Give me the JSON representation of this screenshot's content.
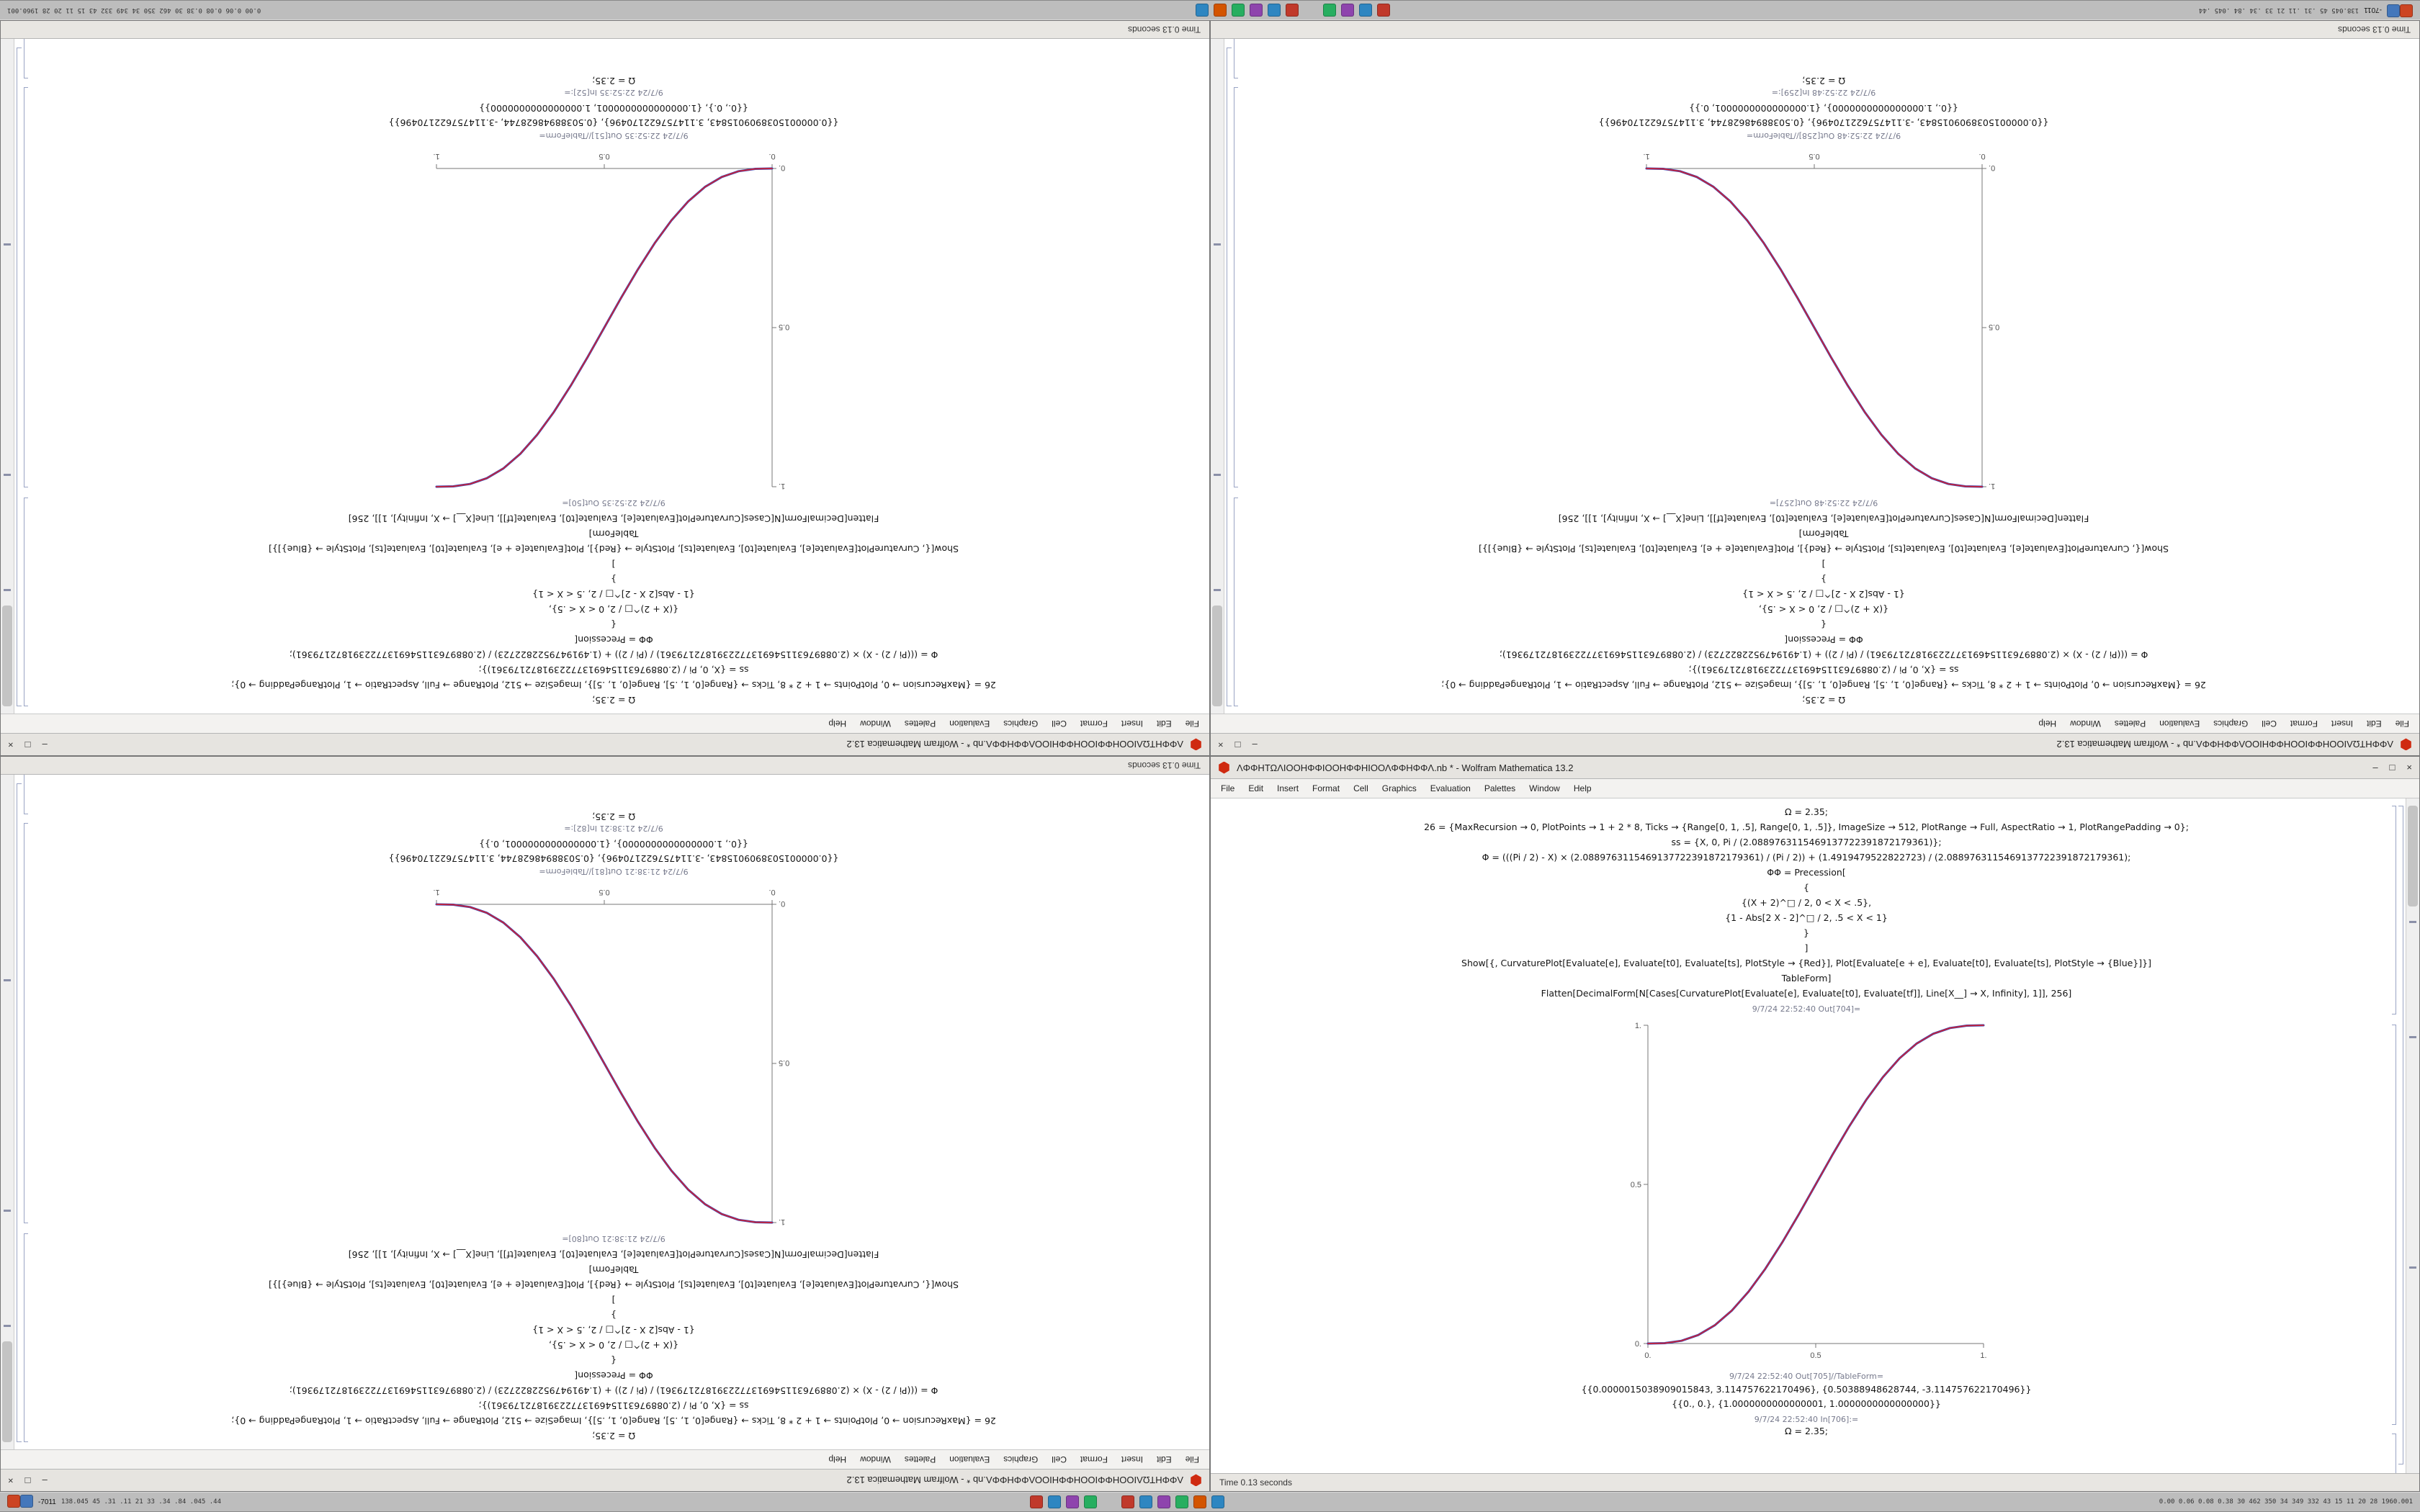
{
  "chrome": {
    "minimize": "–",
    "maximize": "□",
    "close": "×"
  },
  "menu": [
    "File",
    "Edit",
    "Insert",
    "Format",
    "Cell",
    "Graphics",
    "Evaluation",
    "Palettes",
    "Window",
    "Help"
  ],
  "taskbar": {
    "left_icons": [
      {
        "name": "launcher-icon",
        "color": "#cc4422"
      },
      {
        "name": "files-icon",
        "color": "#4477bb"
      }
    ],
    "left_text": "-7011",
    "left_numbers": "138.045 45 .31 .11 21 33 .34 .84 .045 .44",
    "groups": [
      {
        "icons": [
          {
            "name": "app-icon-1",
            "color": "#c0392b"
          },
          {
            "name": "app-icon-2",
            "color": "#2e86c1"
          },
          {
            "name": "app-icon-3",
            "color": "#8e44ad"
          },
          {
            "name": "app-icon-4",
            "color": "#27ae60"
          }
        ]
      },
      {
        "icons": [
          {
            "name": "app-icon-5",
            "color": "#c0392b"
          },
          {
            "name": "app-icon-6",
            "color": "#2e86c1"
          },
          {
            "name": "app-icon-7",
            "color": "#8e44ad"
          },
          {
            "name": "app-icon-8",
            "color": "#27ae60"
          },
          {
            "name": "app-icon-9",
            "color": "#d35400"
          },
          {
            "name": "app-icon-10",
            "color": "#2e86c1"
          }
        ]
      }
    ],
    "right_numbers": "0.00 0.06 0.08 0.38 30 462 350 34 349 332 43 15 11 20 28 1960.001"
  },
  "notebooks": {
    "a": {
      "input_lines": [
        "Ω = 2.35;",
        "26 = {MaxRecursion → 0, PlotPoints → 1 + 2 * 8, Ticks → {Range[0, 1, .5], Range[0, 1, .5]}, ImageSize → 512, PlotRange → Full, AspectRatio → 1, PlotRangePadding → 0};",
        "ss = {X, 0, Pi / (2.0889763115469137722391872179361)};",
        "Φ = (((Pi / 2) - X) × (2.0889763115469137722391872179361) / (Pi / 2)) + (1.4919479522822723) / (2.0889763115469137722391872179361);",
        "ΦΦ = Precession[",
        "{",
        "{(X + 2)^□ / 2, 0 < X < .5},",
        "{1 - Abs[2 X - 2]^□ / 2, .5 < X < 1}",
        "}",
        "]",
        "Show[{, CurvaturePlot[Evaluate[e], Evaluate[t0], Evaluate[ts], PlotStyle → {Red}], Plot[Evaluate[e + e], Evaluate[t0], Evaluate[ts], PlotStyle → {Blue}]}]",
        "TableForm]",
        "Flatten[DecimalForm[N[Cases[CurvaturePlot[Evaluate[e], Evaluate[t0], Evaluate[tf]], Line[X__] → X, Infinity], 1]], 256]"
      ],
      "chart_data": {
        "type": "line",
        "title": "",
        "xlabel": "",
        "ylabel": "",
        "x": [
          0,
          0.05,
          0.1,
          0.15,
          0.2,
          0.25,
          0.3,
          0.35,
          0.4,
          0.45,
          0.5,
          0.55,
          0.6,
          0.65,
          0.7,
          0.75,
          0.8,
          0.85,
          0.9,
          0.95,
          1
        ],
        "series": [
          {
            "name": "red-curve",
            "color": "#cc2233",
            "values": [
              0,
              0.00116,
              0.00856,
              0.02662,
              0.05792,
              0.10352,
              0.16308,
              0.23517,
              0.31744,
              0.40687,
              0.5,
              0.59313,
              0.68256,
              0.76483,
              0.83692,
              0.89648,
              0.94208,
              0.97338,
              0.99144,
              0.99884,
              1
            ]
          },
          {
            "name": "blue-curve",
            "color": "#3344bb",
            "values": [
              0,
              0.00116,
              0.00856,
              0.02662,
              0.05792,
              0.10352,
              0.16308,
              0.23517,
              0.31744,
              0.40687,
              0.5,
              0.59313,
              0.68256,
              0.76483,
              0.83692,
              0.89648,
              0.94208,
              0.97338,
              0.99144,
              0.99884,
              1
            ]
          }
        ],
        "xlim": [
          0,
          1
        ],
        "ylim": [
          0,
          1
        ],
        "xticks": [
          "0.",
          "0.5",
          "1."
        ],
        "yticks": [
          "0.",
          "0.5",
          "1."
        ],
        "grid": false,
        "legend": false
      }
    },
    "b": {
      "input_lines": [
        "Ω = 2.35;",
        "26 = {MaxRecursion → 0, PlotPoints → 1 + 2 * 8, Ticks → {Range[0, 1, .5], Range[0, 1, .5]}, ImageSize → 512, PlotRange → Full, AspectRatio → 1, PlotRangePadding → 0};",
        "ss = {X, 0, Pi / (2.0889763115469137722391872179361)};",
        "Φ = (((Pi / 2) - X) × (2.0889763115469137722391872179361) / (Pi / 2)) + (1.4919479522822723) / (2.0889763115469137722391872179361);",
        "ΦΦ = Precession[",
        "{",
        "{(X + 2)^□ / 2, 0 < X < .5},",
        "{1 - Abs[2 X - 2]^□ / 2, .5 < X < 1}",
        "}",
        "]",
        "Show[{, CurvaturePlot[Evaluate[e], Evaluate[t0], Evaluate[ts], PlotStyle → {Red}], Plot[Evaluate[e + e], Evaluate[t0], Evaluate[ts], PlotStyle → {Blue}]}]",
        "TableForm]",
        "Flatten[DecimalForm[N[Cases[CurvaturePlot[Evaluate[e], Evaluate[t0], Evaluate[tf]], Line[X__] → X, Infinity], 1]], 256]"
      ],
      "chart_data": {
        "type": "line",
        "title": "",
        "xlabel": "",
        "ylabel": "",
        "x": [
          0,
          0.05,
          0.1,
          0.15,
          0.2,
          0.25,
          0.3,
          0.35,
          0.4,
          0.45,
          0.5,
          0.55,
          0.6,
          0.65,
          0.7,
          0.75,
          0.8,
          0.85,
          0.9,
          0.95,
          1
        ],
        "series": [
          {
            "name": "red-curve",
            "color": "#cc2233",
            "values": [
              1,
              0.99884,
              0.99144,
              0.97338,
              0.94208,
              0.89648,
              0.83692,
              0.76483,
              0.68256,
              0.59313,
              0.5,
              0.40687,
              0.31744,
              0.23517,
              0.16308,
              0.10352,
              0.05792,
              0.02662,
              0.00856,
              0.00116,
              0
            ]
          },
          {
            "name": "blue-curve",
            "color": "#3344bb",
            "values": [
              1,
              0.99884,
              0.99144,
              0.97338,
              0.94208,
              0.89648,
              0.83692,
              0.76483,
              0.68256,
              0.59313,
              0.5,
              0.40687,
              0.31744,
              0.23517,
              0.16308,
              0.10352,
              0.05792,
              0.02662,
              0.00856,
              0.00116,
              0
            ]
          }
        ],
        "xlim": [
          0,
          1
        ],
        "ylim": [
          0,
          1
        ],
        "xticks": [
          "0.",
          "0.5",
          "1."
        ],
        "yticks": [
          "0.",
          "0.5",
          "1."
        ],
        "grid": false,
        "legend": false
      }
    }
  },
  "windows": [
    {
      "name": "top-left",
      "rotated": true,
      "notebook": "a",
      "title": "ΛΦΦΗΤΩΛΙΟΟΗΦΦΙΟΟΗΦΦΗΙΟΟΛΦΦΗΦΦΛ.nb * - Wolfram Mathematica 13.2",
      "plot_label": "9/7/24 22:52:35 Out[50]=",
      "table_label": "9/7/24 22:52:35 Out[51]//TableForm=",
      "result_1": "{{0.0000015038909015843, 3.114757622170496}, {0.50388948628744, -3.114757622170496}}",
      "result_2": "{{0., 0.}, {1.0000000000000001, 1.0000000000000000}}",
      "next_label": "9/7/24 22:52:35 In[52]:=",
      "next_code": "Ω = 2.35;",
      "status": "Time 0.13 seconds"
    },
    {
      "name": "top-right",
      "rotated": true,
      "notebook": "b",
      "title": "ΛΦΦΗΤΩΛΙΟΟΗΦΦΙΟΟΗΦΦΗΙΟΟΛΦΦΗΦΦΛ.nb * - Wolfram Mathematica 13.2",
      "plot_label": "9/7/24 22:52:48 Out[257]=",
      "table_label": "9/7/24 22:52:48 Out[258]//TableForm=",
      "result_1": "{{0.0000015038909015843, -3.114757622170496}, {0.50388948628744, 3.114757622170496}}",
      "result_2": "{{0., 1.0000000000000000}, {1.0000000000000001, 0.}}",
      "next_label": "9/7/24 22:52:48 In[259]:=",
      "next_code": "Ω = 2.35;",
      "status": "Time 0.13 seconds"
    },
    {
      "name": "bottom-left",
      "rotated": true,
      "notebook": "b",
      "title": "ΛΦΦΗΤΩΛΙΟΟΗΦΦΙΟΟΗΦΦΗΙΟΟΛΦΦΗΦΦΛ.nb * - Wolfram Mathematica 13.2",
      "plot_label": "9/7/24 21:38:21 Out[80]=",
      "table_label": "9/7/24 21:38:21 Out[81]//TableForm=",
      "result_1": "{{0.0000015038909015843, -3.114757622170496}, {0.50388948628744, 3.114757622170496}}",
      "result_2": "{{0., 1.0000000000000000}, {1.0000000000000001, 0.}}",
      "next_label": "9/7/24 21:38:21 In[82]:=",
      "next_code": "Ω = 2.35;",
      "status": "Time 0.13 seconds"
    },
    {
      "name": "bottom-right",
      "rotated": false,
      "notebook": "a",
      "title": "ΛΦΦΗΤΩΛΙΟΟΗΦΦΙΟΟΗΦΦΗΙΟΟΛΦΦΗΦΦΛ.nb * - Wolfram Mathematica 13.2",
      "plot_label": "9/7/24 22:52:40 Out[704]=",
      "table_label": "9/7/24 22:52:40 Out[705]//TableForm=",
      "result_1": "{{0.0000015038909015843, 3.114757622170496}, {0.50388948628744, -3.114757622170496}}",
      "result_2": "{{0., 0.}, {1.0000000000000001, 1.0000000000000000}}",
      "next_label": "9/7/24 22:52:40 In[706]:=",
      "next_code": "Ω = 2.35;",
      "status": "Time 0.13 seconds"
    }
  ]
}
